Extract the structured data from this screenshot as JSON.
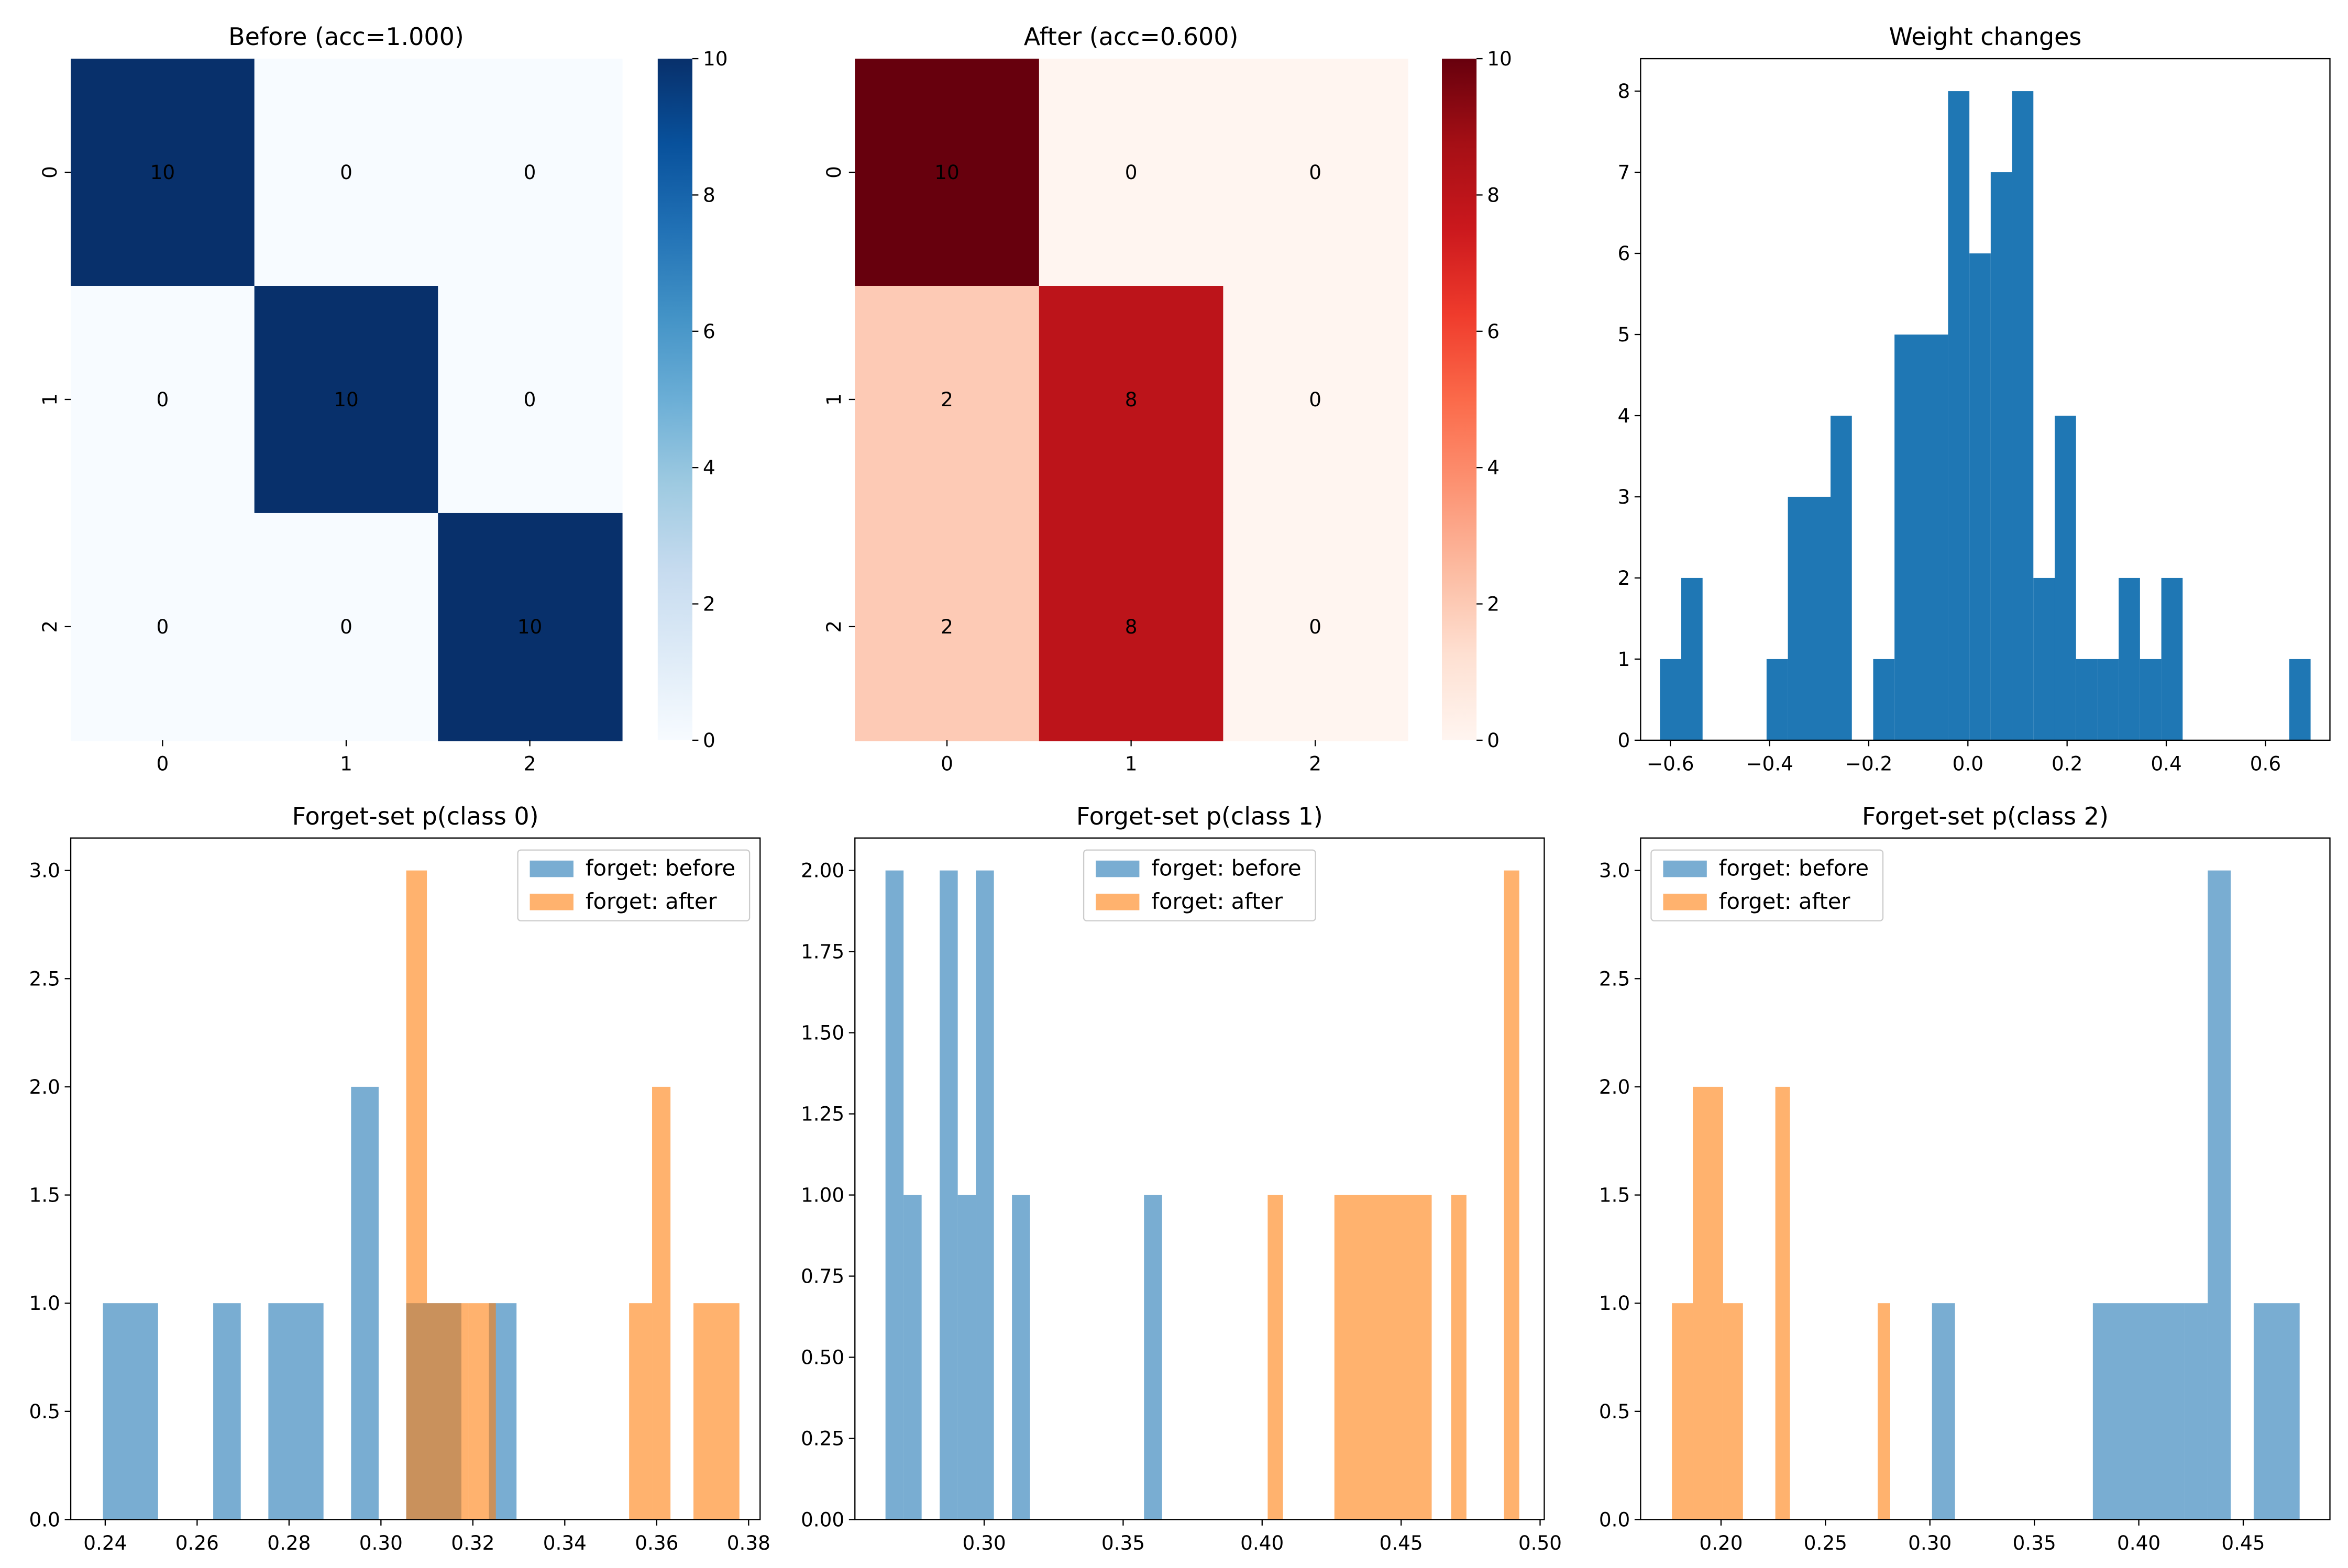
{
  "chart_data": [
    {
      "type": "heatmap",
      "title": "Before (acc=1.000)",
      "rows": [
        "0",
        "1",
        "2"
      ],
      "cols": [
        "0",
        "1",
        "2"
      ],
      "values": [
        [
          10,
          0,
          0
        ],
        [
          0,
          10,
          0
        ],
        [
          0,
          0,
          10
        ]
      ],
      "colormap": "Blues",
      "colorbar": {
        "range": [
          0,
          10
        ],
        "ticks": [
          "0",
          "2",
          "4",
          "6",
          "8",
          "10"
        ]
      }
    },
    {
      "type": "heatmap",
      "title": "After (acc=0.600)",
      "rows": [
        "0",
        "1",
        "2"
      ],
      "cols": [
        "0",
        "1",
        "2"
      ],
      "values": [
        [
          10,
          0,
          0
        ],
        [
          2,
          8,
          0
        ],
        [
          2,
          8,
          0
        ]
      ],
      "colormap": "Reds",
      "colorbar": {
        "range": [
          0,
          10
        ],
        "ticks": [
          "0",
          "2",
          "4",
          "6",
          "8",
          "10"
        ]
      }
    },
    {
      "type": "bar",
      "subtype": "histogram",
      "title": "Weight changes",
      "xlim": [
        -0.66,
        0.73
      ],
      "ylim": [
        0,
        8.4
      ],
      "xticks": [
        -0.6,
        -0.4,
        -0.2,
        0.0,
        0.2,
        0.4,
        0.6
      ],
      "xtick_labels": [
        "−0.6",
        "−0.4",
        "−0.2",
        "0.0",
        "0.2",
        "0.4",
        "0.6"
      ],
      "yticks": [
        0,
        1,
        2,
        3,
        4,
        5,
        6,
        7,
        8
      ],
      "ytick_labels": [
        "0",
        "1",
        "2",
        "3",
        "4",
        "5",
        "6",
        "7",
        "8"
      ],
      "series": [
        {
          "name": "weight changes",
          "color": "#1f77b4",
          "bins": [
            [
              -0.621,
              -0.578,
              1
            ],
            [
              -0.578,
              -0.535,
              2
            ],
            [
              -0.406,
              -0.363,
              1
            ],
            [
              -0.363,
              -0.277,
              3
            ],
            [
              -0.277,
              -0.234,
              4
            ],
            [
              -0.191,
              -0.148,
              1
            ],
            [
              -0.148,
              -0.04,
              5
            ],
            [
              -0.04,
              0.003,
              8
            ],
            [
              0.003,
              0.046,
              6
            ],
            [
              0.046,
              0.089,
              7
            ],
            [
              0.089,
              0.132,
              8
            ],
            [
              0.132,
              0.175,
              2
            ],
            [
              0.175,
              0.218,
              4
            ],
            [
              0.218,
              0.261,
              1
            ],
            [
              0.261,
              0.304,
              1
            ],
            [
              0.304,
              0.347,
              2
            ],
            [
              0.347,
              0.39,
              1
            ],
            [
              0.39,
              0.433,
              2
            ],
            [
              0.648,
              0.691,
              1
            ]
          ]
        }
      ]
    },
    {
      "type": "bar",
      "subtype": "histogram",
      "title": "Forget-set p(class 0)",
      "xlim": [
        0.2325,
        0.3825
      ],
      "ylim": [
        0,
        3.15
      ],
      "xticks": [
        0.24,
        0.26,
        0.28,
        0.3,
        0.32,
        0.34,
        0.36,
        0.38
      ],
      "xtick_labels": [
        "0.24",
        "0.26",
        "0.28",
        "0.30",
        "0.32",
        "0.34",
        "0.36",
        "0.38"
      ],
      "yticks": [
        0,
        0.5,
        1.0,
        1.5,
        2.0,
        2.5,
        3.0
      ],
      "ytick_labels": [
        "0.0",
        "0.5",
        "1.0",
        "1.5",
        "2.0",
        "2.5",
        "3.0"
      ],
      "legend": {
        "placement": "top-right",
        "entries": [
          "forget: before",
          "forget: after"
        ]
      },
      "series": [
        {
          "name": "forget: before",
          "color": "#1f77b4",
          "bins": [
            [
              0.2395,
              0.2515,
              1
            ],
            [
              0.2635,
              0.2695,
              1
            ],
            [
              0.2755,
              0.2875,
              1
            ],
            [
              0.2935,
              0.2995,
              2
            ],
            [
              0.3055,
              0.3175,
              1
            ],
            [
              0.3235,
              0.3295,
              1
            ]
          ]
        },
        {
          "name": "forget: after",
          "color": "#ff7f0e",
          "bins": [
            [
              0.3055,
              0.31,
              3
            ],
            [
              0.31,
              0.319,
              1
            ],
            [
              0.319,
              0.325,
              1
            ],
            [
              0.354,
              0.359,
              1
            ],
            [
              0.359,
              0.363,
              2
            ],
            [
              0.368,
              0.378,
              1
            ]
          ]
        }
      ]
    },
    {
      "type": "bar",
      "subtype": "histogram",
      "title": "Forget-set p(class 1)",
      "xlim": [
        0.2535,
        0.5015
      ],
      "ylim": [
        0,
        2.1
      ],
      "xticks": [
        0.3,
        0.35,
        0.4,
        0.45,
        0.5
      ],
      "xtick_labels": [
        "0.30",
        "0.35",
        "0.40",
        "0.45",
        "0.50"
      ],
      "yticks": [
        0,
        0.25,
        0.5,
        0.75,
        1.0,
        1.25,
        1.5,
        1.75,
        2.0
      ],
      "ytick_labels": [
        "0.00",
        "0.25",
        "0.50",
        "0.75",
        "1.00",
        "1.25",
        "1.50",
        "1.75",
        "2.00"
      ],
      "legend": {
        "placement": "top-center",
        "entries": [
          "forget: before",
          "forget: after"
        ]
      },
      "series": [
        {
          "name": "forget: before",
          "color": "#1f77b4",
          "bins": [
            [
              0.2645,
              0.271,
              2
            ],
            [
              0.271,
              0.2775,
              1
            ],
            [
              0.284,
              0.2905,
              2
            ],
            [
              0.2905,
              0.297,
              1
            ],
            [
              0.297,
              0.3035,
              2
            ],
            [
              0.31,
              0.3165,
              1
            ],
            [
              0.3575,
              0.364,
              1
            ]
          ]
        },
        {
          "name": "forget: after",
          "color": "#ff7f0e",
          "bins": [
            [
              0.402,
              0.4075,
              1
            ],
            [
              0.426,
              0.461,
              1
            ],
            [
              0.468,
              0.4735,
              1
            ],
            [
              0.487,
              0.4925,
              2
            ]
          ]
        }
      ]
    },
    {
      "type": "bar",
      "subtype": "histogram",
      "title": "Forget-set p(class 2)",
      "xlim": [
        0.1615,
        0.4915
      ],
      "ylim": [
        0,
        3.15
      ],
      "xticks": [
        0.2,
        0.25,
        0.3,
        0.35,
        0.4,
        0.45
      ],
      "xtick_labels": [
        "0.20",
        "0.25",
        "0.30",
        "0.35",
        "0.40",
        "0.45"
      ],
      "yticks": [
        0,
        0.5,
        1.0,
        1.5,
        2.0,
        2.5,
        3.0
      ],
      "ytick_labels": [
        "0.0",
        "0.5",
        "1.0",
        "1.5",
        "2.0",
        "2.5",
        "3.0"
      ],
      "legend": {
        "placement": "top-left",
        "entries": [
          "forget: before",
          "forget: after"
        ]
      },
      "series": [
        {
          "name": "forget: before",
          "color": "#1f77b4",
          "bins": [
            [
              0.301,
              0.312,
              1
            ],
            [
              0.378,
              0.422,
              1
            ],
            [
              0.422,
              0.433,
              1
            ],
            [
              0.433,
              0.444,
              3
            ],
            [
              0.455,
              0.477,
              1
            ]
          ]
        },
        {
          "name": "forget: after",
          "color": "#ff7f0e",
          "bins": [
            [
              0.1765,
              0.1865,
              1
            ],
            [
              0.1865,
              0.201,
              2
            ],
            [
              0.201,
              0.2105,
              1
            ],
            [
              0.226,
              0.233,
              2
            ],
            [
              0.275,
              0.281,
              1
            ]
          ]
        }
      ]
    }
  ]
}
